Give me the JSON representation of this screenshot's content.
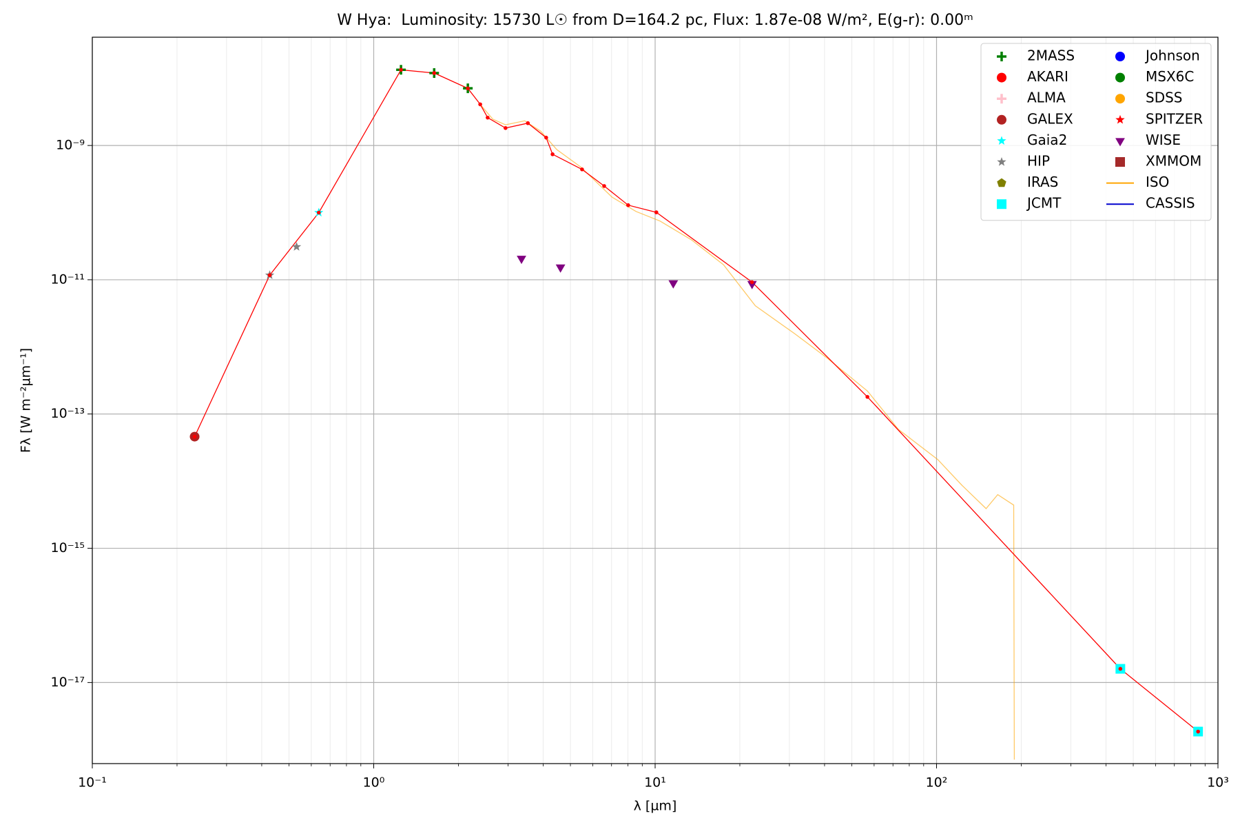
{
  "chart_data": {
    "type": "sed",
    "title": "W Hya:  Luminosity: 15730 L☉ from D=164.2 pc, Flux: 1.87e-08 W/m², E(g-r): 0.00ᵐ",
    "x_label": "λ [µm]",
    "y_label": "Fλ [W m⁻²µm⁻¹]",
    "xscale": "log",
    "yscale": "log",
    "grid": true,
    "x_minor_grid": true,
    "legend": "upper right",
    "legend_columns": 2,
    "xlim": [
      0.1,
      1000
    ],
    "ylim": [
      6.2e-19,
      4.1e-08
    ],
    "xticks": [
      {
        "value": 0.1,
        "label": "10⁻¹"
      },
      {
        "value": 1,
        "label": "10⁰"
      },
      {
        "value": 10,
        "label": "10¹"
      },
      {
        "value": 100,
        "label": "10²"
      },
      {
        "value": 1000,
        "label": "10³"
      }
    ],
    "yticks": [
      {
        "value": 1e-17,
        "label": "10⁻¹⁷"
      },
      {
        "value": 1e-15,
        "label": "10⁻¹⁵"
      },
      {
        "value": 1e-13,
        "label": "10⁻¹³"
      },
      {
        "value": 1e-11,
        "label": "10⁻¹¹"
      },
      {
        "value": 1e-09,
        "label": "10⁻⁹"
      }
    ],
    "series": [
      {
        "name": "2MASS",
        "marker": "plus",
        "color": "#008000",
        "x": [
          1.25,
          1.64,
          2.16
        ],
        "values": [
          1.34e-08,
          1.2e-08,
          7.1e-09
        ]
      },
      {
        "name": "AKARI",
        "marker": "circle",
        "color": "#ff0000",
        "x": [],
        "values": []
      },
      {
        "name": "ALMA",
        "marker": "plus",
        "color": "#ffc0cb",
        "x": [],
        "values": []
      },
      {
        "name": "GALEX",
        "marker": "circle",
        "color": "#b22222",
        "x": [
          0.231
        ],
        "values": [
          4.6e-14
        ]
      },
      {
        "name": "Gaia2",
        "marker": "star",
        "color": "#00ffff",
        "x": [
          0.638
        ],
        "values": [
          1e-10
        ]
      },
      {
        "name": "HIP",
        "marker": "star",
        "color": "#808080",
        "x": [
          0.427,
          0.532
        ],
        "values": [
          1.17e-11,
          3.1e-11
        ]
      },
      {
        "name": "IRAS",
        "marker": "pentagon",
        "color": "#808000",
        "x": [],
        "values": []
      },
      {
        "name": "JCMT",
        "marker": "square",
        "color": "#00ffff",
        "x": [
          450,
          850
        ],
        "values": [
          1.6e-17,
          1.86e-18
        ]
      },
      {
        "name": "Johnson",
        "marker": "circle",
        "color": "#0000ff",
        "x": [],
        "values": []
      },
      {
        "name": "MSX6C",
        "marker": "circle",
        "color": "#008000",
        "x": [],
        "values": []
      },
      {
        "name": "SDSS",
        "marker": "circle",
        "color": "#ffa500",
        "x": [],
        "values": []
      },
      {
        "name": "SPITZER",
        "marker": "star",
        "color": "#ff0000",
        "x": [],
        "values": []
      },
      {
        "name": "WISE",
        "marker": "triangle-down",
        "color": "#800080",
        "x": [
          3.35,
          4.61,
          11.6,
          22.1
        ],
        "values": [
          2.07e-11,
          1.54e-11,
          8.9e-12,
          8.7e-12
        ]
      },
      {
        "name": "XMMOM",
        "marker": "square",
        "color": "#a52a2a",
        "x": [],
        "values": []
      },
      {
        "name": "ISO",
        "marker": "line",
        "color": "#ffa500",
        "x": [
          2.39,
          2.65,
          2.94,
          3.44,
          3.92,
          4.47,
          5.43,
          7.03,
          8.55,
          10.4,
          13.5,
          17.5,
          22.7,
          31.4,
          40.7,
          56.8,
          73.2,
          101,
          123,
          150,
          165,
          188,
          189
        ],
        "values": [
          4.1e-09,
          2.46e-09,
          2.03e-09,
          2.33e-09,
          1.63e-09,
          8.7e-10,
          4.8e-10,
          1.7e-10,
          1.04e-10,
          7.5e-11,
          3.9e-11,
          1.67e-11,
          4.1e-12,
          1.56e-12,
          6.9e-13,
          2.2e-13,
          5.9e-14,
          2.1e-14,
          8.7e-15,
          3.9e-15,
          6.3e-15,
          4.4e-15,
          7.1e-19
        ]
      },
      {
        "name": "CASSIS",
        "marker": "line",
        "color": "#0000cd",
        "x": [],
        "values": []
      },
      {
        "marker": "dotline",
        "color": "#ff0000",
        "x": [
          0.231,
          0.427,
          0.638,
          1.25,
          1.64,
          2.16,
          2.39,
          2.54,
          2.94,
          3.53,
          4.1,
          4.32,
          5.5,
          6.59,
          8.02,
          10.1,
          22.1,
          56.8,
          450,
          850
        ],
        "values": [
          4.6e-14,
          1.17e-11,
          1e-10,
          1.34e-08,
          1.2e-08,
          7.1e-09,
          4.1e-09,
          2.6e-09,
          1.82e-09,
          2.15e-09,
          1.31e-09,
          7.4e-10,
          4.4e-10,
          2.49e-10,
          1.29e-10,
          1.01e-10,
          9.2e-12,
          1.8e-13,
          1.6e-17,
          1.86e-18
        ]
      }
    ]
  }
}
